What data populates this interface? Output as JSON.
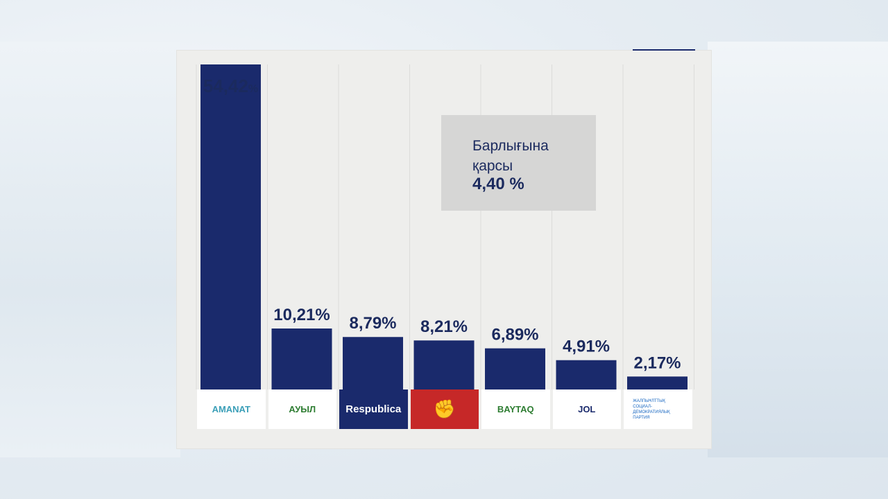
{
  "colors": {
    "bar": "#1a2a6c",
    "label": "#1b2a5e",
    "grid": "#dcdcda",
    "note_bg": "#d6d6d5"
  },
  "chart_data": {
    "type": "bar",
    "categories": [
      "AMANAT",
      "Ауыл",
      "Respublica",
      "",
      "BAYTAQ",
      "JOL",
      ""
    ],
    "values": [
      54.42,
      10.21,
      8.79,
      8.21,
      6.89,
      4.91,
      2.17
    ],
    "value_labels": [
      "54,42%",
      "10,21%",
      "8,79%",
      "8,21%",
      "6,89%",
      "4,91%",
      "2,17%"
    ],
    "ylim": [
      0,
      54.42
    ],
    "grid": "vertical",
    "title": "",
    "xlabel": "",
    "ylabel": ""
  },
  "note": {
    "text": "Барлығына қарсы",
    "value": "4,40 %"
  },
  "logos": [
    {
      "name": "AMANAT",
      "icon": "amanat-logo",
      "color": "#3b9fb8",
      "bg": "#ffffff"
    },
    {
      "name": "АУЫЛ",
      "icon": "auyl-logo",
      "color": "#2e7d32",
      "bg": "#ffffff"
    },
    {
      "name": "Respublica",
      "icon": "respublica-logo",
      "color": "#ffffff",
      "bg": "#1a2a6c"
    },
    {
      "name": "",
      "icon": "fist-logo",
      "color": "#ffffff",
      "bg": "#c62828"
    },
    {
      "name": "BAYTAQ",
      "icon": "baytaq-logo",
      "color": "#2e7d32",
      "bg": "#ffffff"
    },
    {
      "name": "JOL",
      "icon": "jol-logo",
      "color": "#1a2a6c",
      "bg": "#ffffff"
    },
    {
      "name": "ЖАЛПЫҰЛТТЫҚ СОЦИАЛ-ДЕМОКРАТИЯЛЫҚ ПАРТИЯ",
      "icon": "nsdp-logo",
      "color": "#1565c0",
      "bg": "#ffffff"
    }
  ]
}
